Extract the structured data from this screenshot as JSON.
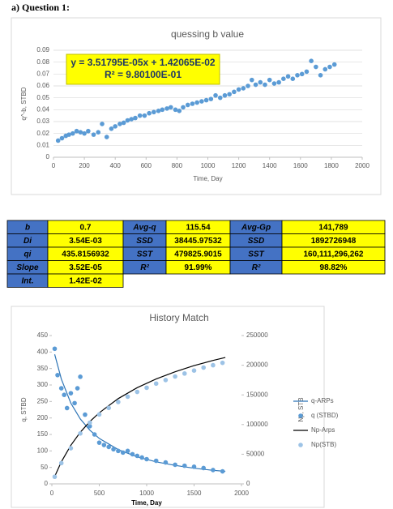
{
  "heading": "a)  Question 1:",
  "chart_data": [
    {
      "type": "scatter",
      "title": "quessing  b value",
      "x_label": "Time, Day",
      "y_label": "q^-b, STBD",
      "annotations": [
        "y = 3.51795E-05x + 1.42065E-02",
        "R² = 9.80100E-01"
      ],
      "color": "#5b9bd5",
      "grid": true,
      "xlim": [
        0,
        2000
      ],
      "xticks": [
        0,
        200,
        400,
        600,
        800,
        1000,
        1200,
        1400,
        1600,
        1800,
        2000
      ],
      "ylim": [
        0,
        0.09
      ],
      "yticks": [
        0,
        0.01,
        0.02,
        0.03,
        0.04,
        0.05,
        0.06,
        0.07,
        0.08,
        0.09
      ],
      "x": [
        30,
        55,
        80,
        100,
        125,
        150,
        175,
        200,
        225,
        260,
        290,
        315,
        345,
        375,
        400,
        430,
        455,
        480,
        505,
        530,
        560,
        590,
        620,
        650,
        680,
        705,
        735,
        760,
        790,
        815,
        840,
        870,
        900,
        930,
        960,
        990,
        1020,
        1050,
        1080,
        1110,
        1140,
        1170,
        1200,
        1230,
        1260,
        1285,
        1310,
        1340,
        1370,
        1400,
        1430,
        1460,
        1490,
        1520,
        1550,
        1580,
        1610,
        1640,
        1670,
        1700,
        1730,
        1760,
        1790,
        1820
      ],
      "values": [
        0.014,
        0.016,
        0.018,
        0.019,
        0.02,
        0.022,
        0.021,
        0.02,
        0.022,
        0.019,
        0.021,
        0.028,
        0.017,
        0.024,
        0.026,
        0.028,
        0.029,
        0.031,
        0.032,
        0.033,
        0.035,
        0.035,
        0.037,
        0.038,
        0.039,
        0.04,
        0.041,
        0.042,
        0.04,
        0.039,
        0.042,
        0.044,
        0.045,
        0.046,
        0.047,
        0.048,
        0.049,
        0.052,
        0.05,
        0.052,
        0.053,
        0.055,
        0.057,
        0.058,
        0.06,
        0.065,
        0.061,
        0.063,
        0.061,
        0.065,
        0.062,
        0.063,
        0.066,
        0.068,
        0.066,
        0.069,
        0.07,
        0.072,
        0.081,
        0.076,
        0.069,
        0.074,
        0.076,
        0.078
      ]
    },
    {
      "type": "line",
      "title": "History Match",
      "x_label": "Time, Day",
      "y_label": "q, STBD",
      "y2_label": "Np, STB",
      "grid": false,
      "legend": "right",
      "xlim": [
        0,
        2000
      ],
      "xticks": [
        0,
        500,
        1000,
        1500,
        2000
      ],
      "ylim": [
        0,
        450
      ],
      "yticks": [
        0,
        50,
        100,
        150,
        200,
        250,
        300,
        350,
        400,
        450
      ],
      "y2lim": [
        0,
        250000
      ],
      "y2ticks": [
        0,
        50000,
        100000,
        150000,
        200000,
        250000
      ],
      "series": [
        {
          "name": "q-ARPs",
          "color": "#2e75b6",
          "mode": "line",
          "x": [
            30,
            100,
            200,
            300,
            400,
            500,
            700,
            900,
            1100,
            1300,
            1500,
            1700,
            1830
          ],
          "values": [
            393,
            318,
            245,
            197,
            163,
            138,
            104,
            82,
            67,
            56,
            47.5,
            41,
            38
          ]
        },
        {
          "name": "q (STBD)",
          "color": "#5b9bd5",
          "mode": "markers",
          "x": [
            30,
            60,
            100,
            130,
            160,
            200,
            240,
            270,
            300,
            350,
            400,
            450,
            500,
            550,
            600,
            650,
            700,
            750,
            800,
            850,
            900,
            950,
            1000,
            1100,
            1200,
            1300,
            1400,
            1500,
            1600,
            1700,
            1800
          ],
          "values": [
            410,
            330,
            290,
            270,
            230,
            275,
            245,
            290,
            325,
            210,
            175,
            150,
            125,
            118,
            112,
            105,
            100,
            95,
            100,
            90,
            85,
            80,
            75,
            70,
            65,
            58,
            55,
            52,
            48,
            42,
            38
          ]
        },
        {
          "name": "Np-Arps",
          "color": "#000000",
          "mode": "line",
          "axis": "y2",
          "x": [
            30,
            100,
            200,
            300,
            400,
            500,
            700,
            900,
            1100,
            1300,
            1500,
            1700,
            1830
          ],
          "values": [
            12400,
            37100,
            65000,
            87000,
            104900,
            119800,
            143700,
            162100,
            176800,
            188900,
            199300,
            208100,
            213000
          ]
        },
        {
          "name": "Np(STB)",
          "color": "#9dc3e6",
          "mode": "markers",
          "axis": "y2",
          "x": [
            30,
            100,
            200,
            300,
            400,
            500,
            600,
            700,
            800,
            900,
            1000,
            1100,
            1200,
            1300,
            1400,
            1500,
            1600,
            1700,
            1800
          ],
          "values": [
            12000,
            35000,
            60000,
            85000,
            103000,
            117000,
            128000,
            138000,
            147000,
            155000,
            162000,
            169000,
            175000,
            181000,
            186000,
            191000,
            196000,
            200000,
            204000
          ]
        }
      ]
    }
  ],
  "table": {
    "rows": [
      [
        "b",
        "0.7",
        "Avg-q",
        "115.54",
        "Avg-Gp",
        "141,789"
      ],
      [
        "Di",
        "3.54E-03",
        "SSD",
        "38445.97532",
        "SSD",
        "1892726948"
      ],
      [
        "qi",
        "435.8156932",
        "SST",
        "479825.9015",
        "SST",
        "160,111,296,262"
      ],
      [
        "Slope",
        "3.52E-05",
        "R²",
        "91.99%",
        "R²",
        "98.82%"
      ],
      [
        "Int.",
        "1.42E-02"
      ]
    ]
  }
}
